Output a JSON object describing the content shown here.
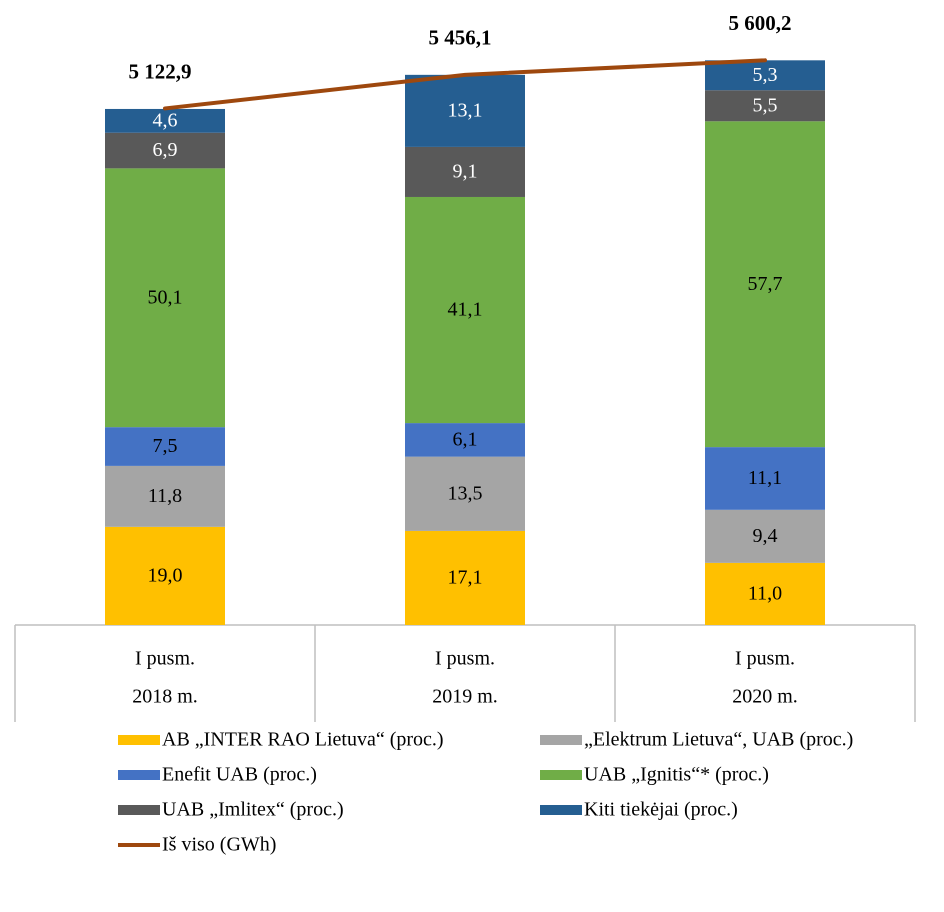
{
  "chart_data": {
    "type": "bar",
    "stacked": true,
    "categories": [
      [
        "I pusm.",
        "2018 m."
      ],
      [
        "I pusm.",
        "2019 m."
      ],
      [
        "I pusm.",
        "2020 m."
      ]
    ],
    "ylim": [
      0,
      6000
    ],
    "series": [
      {
        "name": "AB „INTER RAO Lietuva“ (proc.)",
        "color": "#FFC000",
        "label_color": "#000000",
        "values": [
          19.0,
          17.1,
          11.0
        ],
        "value_labels": [
          "19,0",
          "17,1",
          "11,0"
        ]
      },
      {
        "name": "„Elektrum Lietuva“, UAB (proc.)",
        "color": "#A5A5A5",
        "label_color": "#000000",
        "values": [
          11.8,
          13.5,
          9.4
        ],
        "value_labels": [
          "11,8",
          "13,5",
          "9,4"
        ]
      },
      {
        "name": "Enefit UAB (proc.)",
        "color": "#4472C4",
        "label_color": "#000000",
        "values": [
          7.5,
          6.1,
          11.1
        ],
        "value_labels": [
          "7,5",
          "6,1",
          "11,1"
        ]
      },
      {
        "name": "UAB  „Ignitis“* (proc.)",
        "color": "#70AD47",
        "label_color": "#000000",
        "values": [
          50.1,
          41.1,
          57.7
        ],
        "value_labels": [
          "50,1",
          "41,1",
          "57,7"
        ]
      },
      {
        "name": "UAB „Imlitex“ (proc.)",
        "color": "#595959",
        "label_color": "#FFFFFF",
        "values": [
          6.9,
          9.1,
          5.5
        ],
        "value_labels": [
          "6,9",
          "9,1",
          "5,5"
        ]
      },
      {
        "name": "Kiti tiekėjai (proc.)",
        "color": "#255E91",
        "label_color": "#FFFFFF",
        "values": [
          4.6,
          13.1,
          5.3
        ],
        "value_labels": [
          "4,6",
          "13,1",
          "5,3"
        ]
      },
      {
        "name": "Iš viso (GWh)",
        "type": "line",
        "color": "#9E480E",
        "values": [
          5122.9,
          5456.1,
          5600.2
        ],
        "value_labels": [
          "5 122,9",
          "5 456,1",
          "5 600,2"
        ]
      }
    ]
  }
}
